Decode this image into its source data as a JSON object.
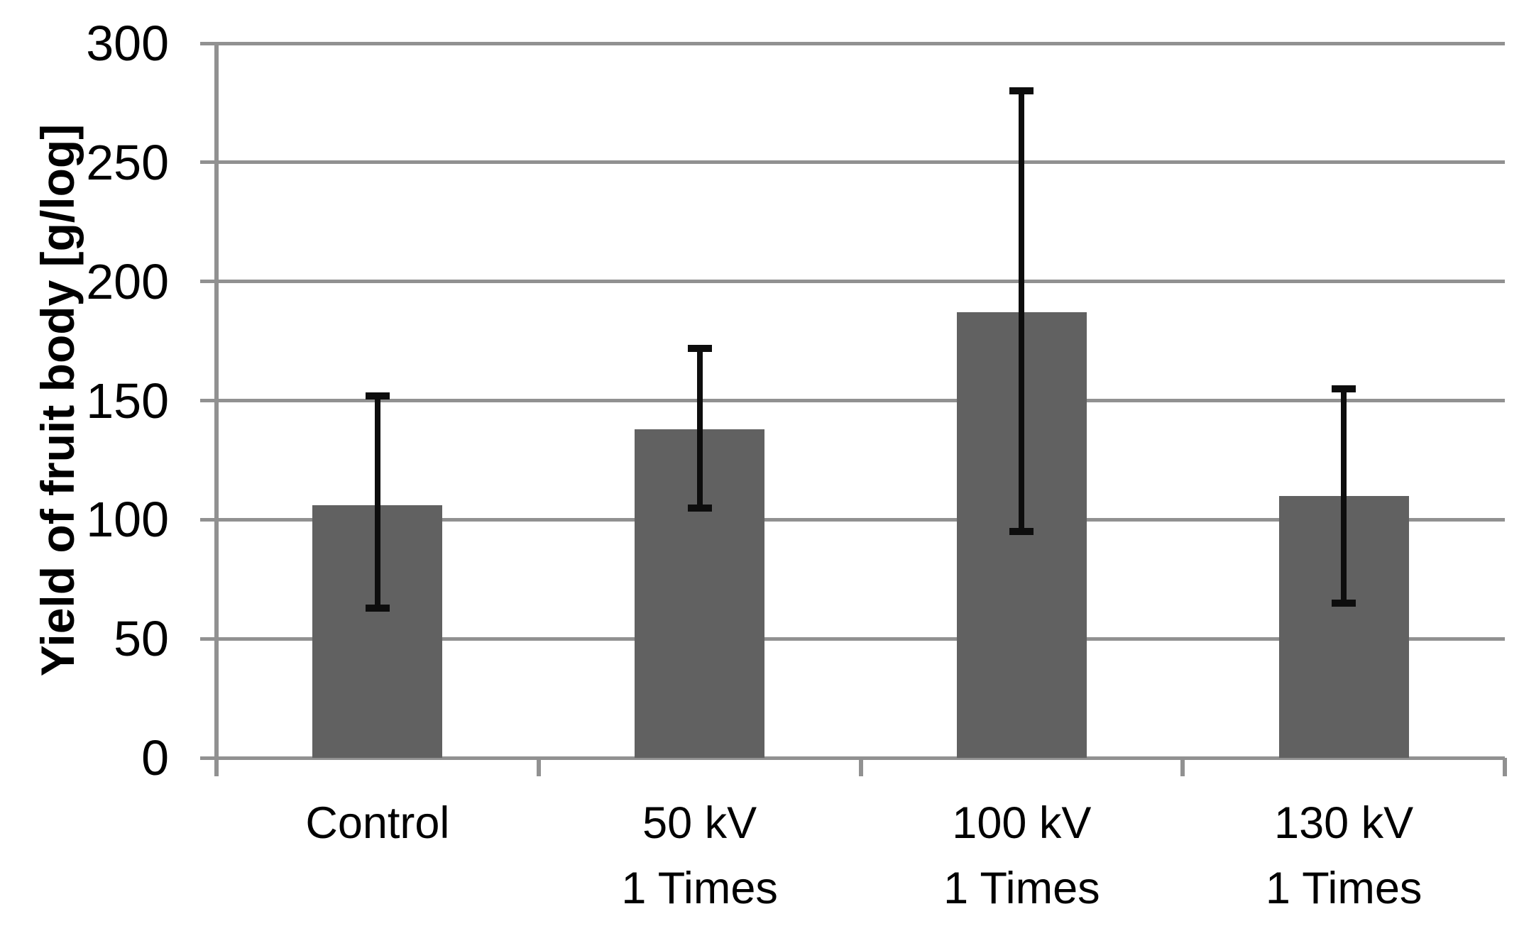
{
  "chart_data": {
    "type": "bar",
    "title": "",
    "xlabel": "",
    "ylabel": "Yield of fruit body [g/log]",
    "ylim": [
      0,
      300
    ],
    "ytick_step": 50,
    "yticks": [
      0,
      50,
      100,
      150,
      200,
      250,
      300
    ],
    "grid": "horizontal gridlines on",
    "legend": "none",
    "categories": [
      "Control",
      "50 kV 1 Times",
      "100 kV 1 Times",
      "130 kV 1 Times"
    ],
    "category_label_lines": [
      [
        "Control"
      ],
      [
        "50 kV",
        "1 Times"
      ],
      [
        "100 kV",
        "1 Times"
      ],
      [
        "130 kV",
        "1 Times"
      ]
    ],
    "values": [
      106,
      138,
      187,
      110
    ],
    "error_bar_low": [
      63,
      105,
      95,
      65
    ],
    "error_bar_high": [
      152,
      172,
      280,
      155
    ],
    "colors": {
      "bar_fill": "#616161",
      "error_bar": "#0d0d0d",
      "axis_and_grid": "#919191",
      "text": "#000000",
      "background": "#ffffff"
    }
  }
}
